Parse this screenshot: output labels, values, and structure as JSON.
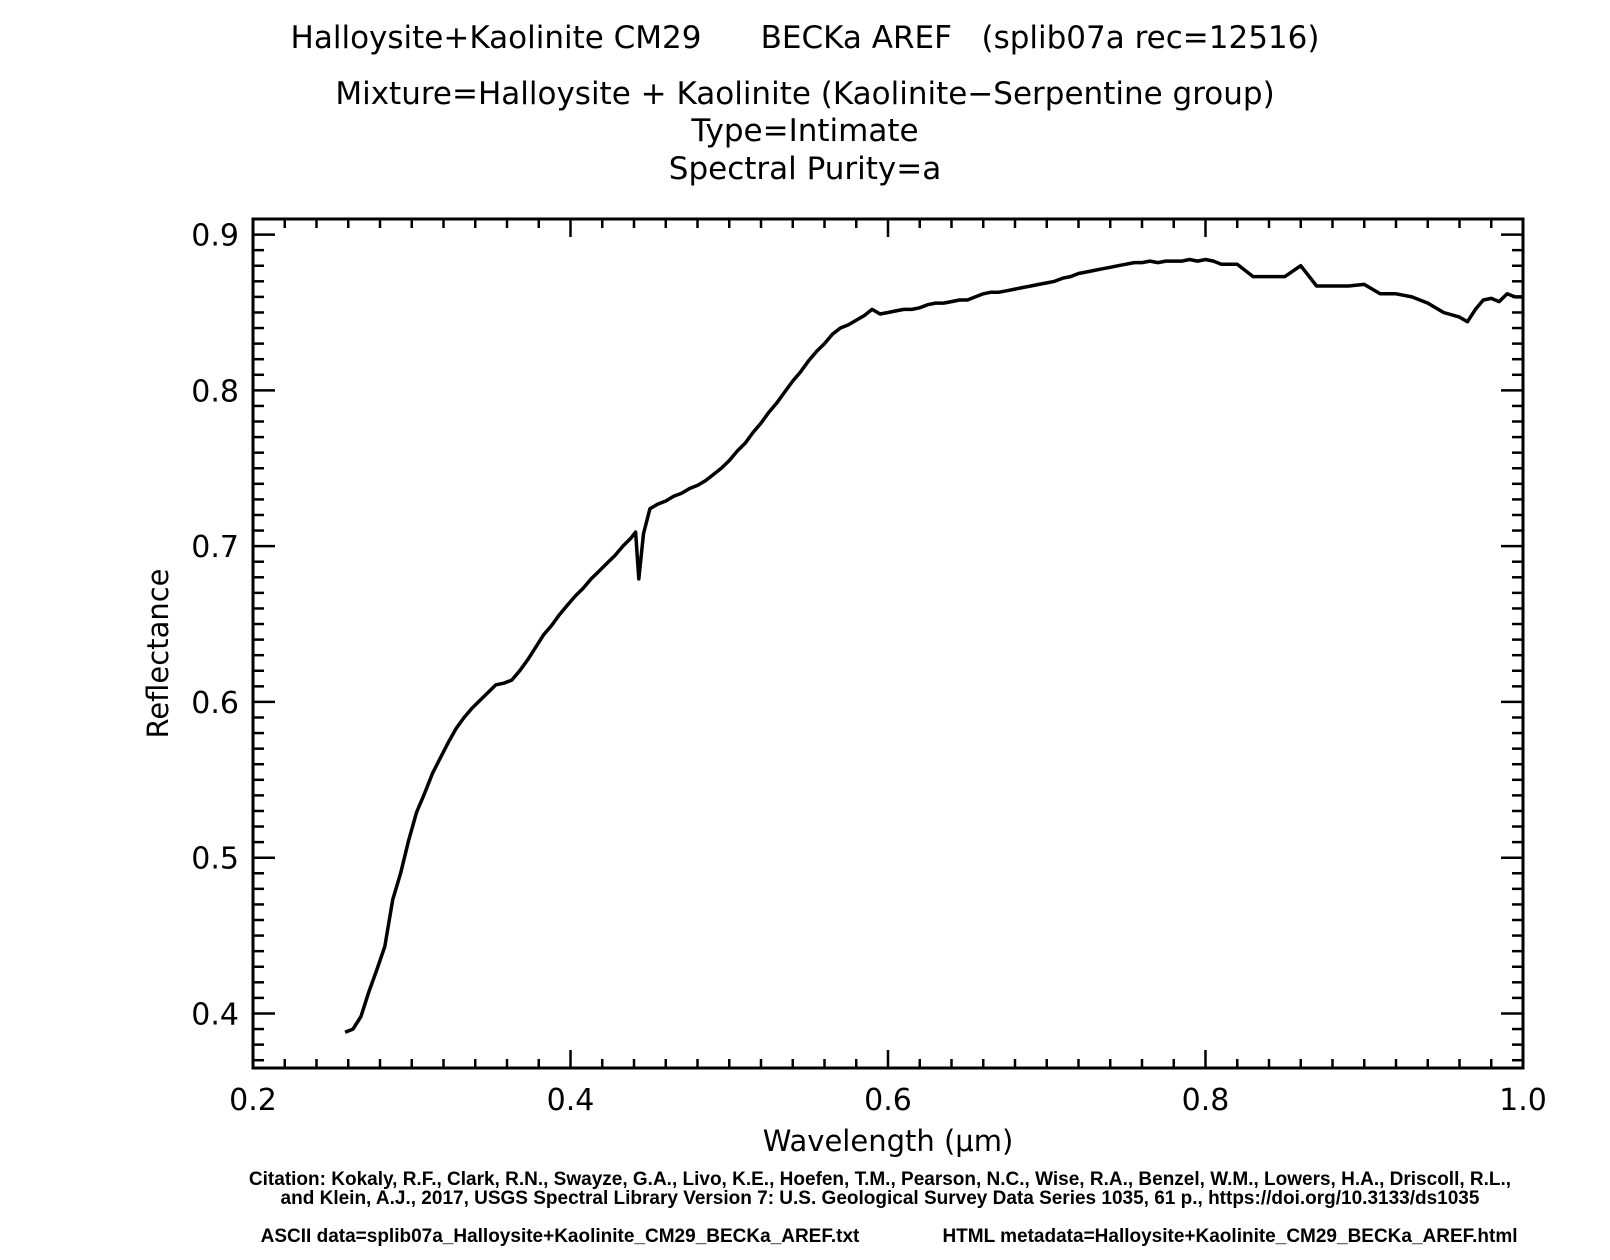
{
  "header": {
    "line1": "Halloysite+Kaolinite CM29      BECKa AREF   (splib07a rec=12516)",
    "line2": "Mixture=Halloysite + Kaolinite (Kaolinite−Serpentine group)",
    "line3": "Type=Intimate",
    "line4": "Spectral Purity=a"
  },
  "footer": {
    "citation1": "Citation: Kokaly, R.F., Clark, R.N., Swayze, G.A., Livo, K.E., Hoefen, T.M., Pearson, N.C., Wise, R.A., Benzel, W.M., Lowers, H.A., Driscoll, R.L.,",
    "citation2": "and Klein, A.J., 2017, USGS Spectral Library Version 7: U.S. Geological Survey Data Series 1035, 61 p., https://doi.org/10.3133/ds1035",
    "ascii": "ASCII data=splib07a_Halloysite+Kaolinite_CM29_BECKa_AREF.txt",
    "html": "HTML metadata=Halloysite+Kaolinite_CM29_BECKa_AREF.html"
  },
  "chart_data": {
    "type": "line",
    "title": "Halloysite+Kaolinite CM29      BECKa AREF   (splib07a rec=12516)",
    "xlabel": "Wavelength (μm)",
    "ylabel": "Reflectance",
    "xlim": [
      0.2,
      1.0
    ],
    "ylim": [
      0.365,
      0.91
    ],
    "xticks": [
      0.2,
      0.4,
      0.6,
      0.8,
      1.0
    ],
    "xtick_labels": [
      "0.2",
      "0.4",
      "0.6",
      "0.8",
      "1.0"
    ],
    "yticks": [
      0.4,
      0.5,
      0.6,
      0.7,
      0.8,
      0.9
    ],
    "ytick_labels": [
      "0.4",
      "0.5",
      "0.6",
      "0.7",
      "0.8",
      "0.9"
    ],
    "grid": false,
    "line_color": "#000000",
    "series": [
      {
        "x": [
          0.258,
          0.263,
          0.268,
          0.273,
          0.278,
          0.283,
          0.288,
          0.293,
          0.298,
          0.303,
          0.308,
          0.313,
          0.318,
          0.323,
          0.328,
          0.333,
          0.338,
          0.343,
          0.348,
          0.353,
          0.358,
          0.363,
          0.368,
          0.373,
          0.378,
          0.383,
          0.388,
          0.393,
          0.398,
          0.403,
          0.408,
          0.413,
          0.418,
          0.423,
          0.428,
          0.433,
          0.438,
          0.441,
          0.443,
          0.446,
          0.45,
          0.455,
          0.46,
          0.465,
          0.47,
          0.475,
          0.48,
          0.485,
          0.49,
          0.495,
          0.5,
          0.505,
          0.51,
          0.515,
          0.52,
          0.525,
          0.53,
          0.535,
          0.54,
          0.545,
          0.55,
          0.555,
          0.56,
          0.565,
          0.57,
          0.575,
          0.58,
          0.585,
          0.59,
          0.595,
          0.6,
          0.605,
          0.61,
          0.615,
          0.62,
          0.625,
          0.63,
          0.635,
          0.64,
          0.645,
          0.65,
          0.655,
          0.66,
          0.665,
          0.67,
          0.675,
          0.68,
          0.685,
          0.69,
          0.695,
          0.7,
          0.705,
          0.71,
          0.715,
          0.72,
          0.725,
          0.73,
          0.735,
          0.74,
          0.745,
          0.75,
          0.755,
          0.76,
          0.765,
          0.77,
          0.775,
          0.78,
          0.785,
          0.79,
          0.795,
          0.8,
          0.805,
          0.81,
          0.82,
          0.83,
          0.84,
          0.85,
          0.86,
          0.87,
          0.88,
          0.89,
          0.9,
          0.91,
          0.92,
          0.93,
          0.94,
          0.95,
          0.96,
          0.965,
          0.97,
          0.975,
          0.98,
          0.985,
          0.99,
          0.995,
          1.0
        ],
        "y": [
          0.388,
          0.39,
          0.398,
          0.414,
          0.428,
          0.443,
          0.473,
          0.49,
          0.511,
          0.529,
          0.541,
          0.554,
          0.564,
          0.574,
          0.583,
          0.59,
          0.596,
          0.601,
          0.606,
          0.611,
          0.612,
          0.614,
          0.62,
          0.627,
          0.635,
          0.643,
          0.649,
          0.656,
          0.662,
          0.668,
          0.673,
          0.679,
          0.684,
          0.689,
          0.694,
          0.7,
          0.705,
          0.709,
          0.679,
          0.708,
          0.724,
          0.727,
          0.729,
          0.732,
          0.734,
          0.737,
          0.739,
          0.742,
          0.746,
          0.75,
          0.755,
          0.761,
          0.766,
          0.773,
          0.779,
          0.786,
          0.792,
          0.799,
          0.806,
          0.812,
          0.819,
          0.825,
          0.83,
          0.836,
          0.84,
          0.842,
          0.845,
          0.848,
          0.852,
          0.849,
          0.85,
          0.851,
          0.852,
          0.852,
          0.853,
          0.855,
          0.856,
          0.856,
          0.857,
          0.858,
          0.858,
          0.86,
          0.862,
          0.863,
          0.863,
          0.864,
          0.865,
          0.866,
          0.867,
          0.868,
          0.869,
          0.87,
          0.872,
          0.873,
          0.875,
          0.876,
          0.877,
          0.878,
          0.879,
          0.88,
          0.881,
          0.882,
          0.882,
          0.883,
          0.882,
          0.883,
          0.883,
          0.883,
          0.884,
          0.883,
          0.884,
          0.883,
          0.881,
          0.881,
          0.873,
          0.873,
          0.873,
          0.88,
          0.867,
          0.867,
          0.867,
          0.868,
          0.862,
          0.862,
          0.86,
          0.856,
          0.85,
          0.847,
          0.844,
          0.852,
          0.858,
          0.859,
          0.857,
          0.862,
          0.86,
          0.86
        ]
      }
    ]
  }
}
